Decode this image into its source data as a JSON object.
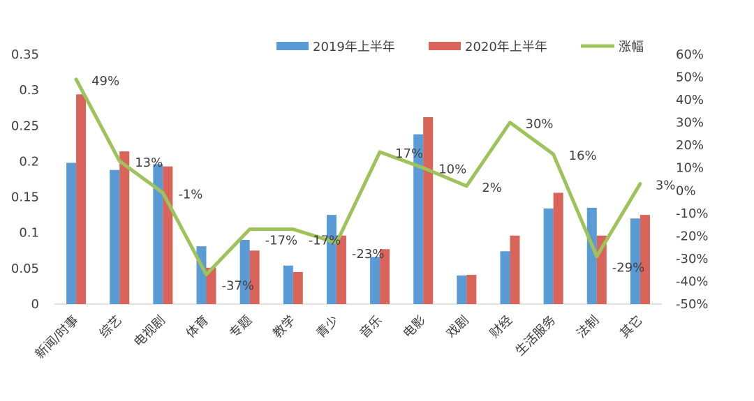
{
  "chart_data": {
    "type": "bar",
    "categories": [
      "新闻/时事",
      "综艺",
      "电视剧",
      "体育",
      "专题",
      "教学",
      "青少",
      "音乐",
      "电影",
      "戏剧",
      "财经",
      "生活服务",
      "法制",
      "其它"
    ],
    "series": [
      {
        "name": "2019年上半年",
        "type": "bar",
        "axis": "left",
        "color": "#5B9BD5",
        "values": [
          0.198,
          0.188,
          0.196,
          0.081,
          0.09,
          0.054,
          0.125,
          0.066,
          0.238,
          0.04,
          0.074,
          0.134,
          0.135,
          0.12
        ]
      },
      {
        "name": "2020年上半年",
        "type": "bar",
        "axis": "left",
        "color": "#D9645A",
        "values": [
          0.294,
          0.214,
          0.193,
          0.051,
          0.075,
          0.045,
          0.096,
          0.077,
          0.262,
          0.041,
          0.096,
          0.156,
          0.096,
          0.125
        ]
      },
      {
        "name": "涨幅",
        "type": "line",
        "axis": "right",
        "color": "#9DC35A",
        "values": [
          49,
          13,
          -1,
          -37,
          -17,
          -17,
          -23,
          17,
          10,
          2,
          30,
          16,
          -29,
          3
        ],
        "labels": [
          "49%",
          "13%",
          "-1%",
          "-37%",
          "-17%",
          "-17%",
          "-23%",
          "17%",
          "10%",
          "2%",
          "30%",
          "16%",
          "-29%",
          "3%"
        ]
      }
    ],
    "y_left": {
      "range": [
        0,
        0.35
      ],
      "ticks": [
        "0",
        "0.05",
        "0.1",
        "0.15",
        "0.2",
        "0.25",
        "0.3",
        "0.35"
      ]
    },
    "y_right": {
      "range": [
        -50,
        60
      ],
      "ticks": [
        "-50%",
        "-40%",
        "-30%",
        "-20%",
        "-10%",
        "0%",
        "10%",
        "20%",
        "30%",
        "40%",
        "50%",
        "60%"
      ]
    },
    "legend_position": "top-right",
    "grid": false
  }
}
